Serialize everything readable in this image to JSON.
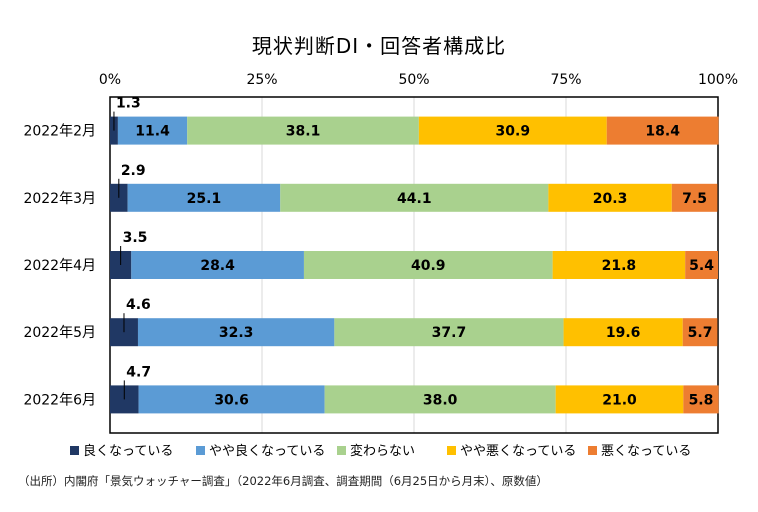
{
  "chart_data": {
    "type": "bar",
    "orientation": "horizontal",
    "stacked": true,
    "title": "現状判断DI・回答者構成比",
    "categories": [
      "2022年2月",
      "2022年3月",
      "2022年4月",
      "2022年5月",
      "2022年6月"
    ],
    "xticks": [
      "0%",
      "25%",
      "50%",
      "75%",
      "100%"
    ],
    "xlim": [
      0,
      100
    ],
    "grid": "vertical",
    "legend_position": "bottom",
    "series": [
      {
        "name": "良くなっている",
        "color": "#203864",
        "values": [
          1.3,
          2.9,
          3.5,
          4.6,
          4.7
        ]
      },
      {
        "name": "やや良くなっている",
        "color": "#5b9bd5",
        "values": [
          11.4,
          25.1,
          28.4,
          32.3,
          30.6
        ]
      },
      {
        "name": "変わらない",
        "color": "#a9d18e",
        "values": [
          38.1,
          44.1,
          40.9,
          37.7,
          38.0
        ]
      },
      {
        "name": "やや悪くなっている",
        "color": "#ffc000",
        "values": [
          30.9,
          20.3,
          21.8,
          19.6,
          21.0
        ]
      },
      {
        "name": "悪くなっている",
        "color": "#ed7d31",
        "values": [
          18.4,
          7.5,
          5.4,
          5.7,
          5.8
        ]
      }
    ],
    "source": "（出所）内閣府「景気ウォッチャー調査」（2022年6月調査、調査期間（6月25日から月末）、原数値）"
  }
}
